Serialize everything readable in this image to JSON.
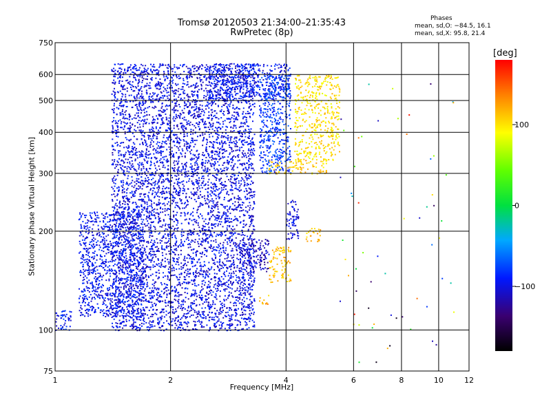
{
  "title": {
    "line1": "Tromsø 20120503 21:34:00–21:35:43",
    "line2": "RwPretec (8p)"
  },
  "stats": {
    "heading": "Phases",
    "o_mode": "mean, sd,O: −84.5, 16.1",
    "x_mode": "mean, sd,X:  95.8, 21.4"
  },
  "colorbar": {
    "label": "[deg]",
    "range": [
      -180,
      180
    ],
    "tick_labels": [
      "100",
      "0",
      "−100"
    ],
    "tick_values": [
      100,
      0,
      -100
    ]
  },
  "chart_data": {
    "type": "scatter",
    "xlabel": "Frequency [MHz]",
    "ylabel": "Stationary phase Virtual Height [km]",
    "xscale": "log",
    "yscale": "log",
    "xlim": [
      1,
      12
    ],
    "ylim": [
      75,
      750
    ],
    "x_ticks": [
      1,
      2,
      4,
      6,
      8,
      10,
      12
    ],
    "y_ticks": [
      75,
      100,
      200,
      300,
      400,
      500,
      600,
      750
    ],
    "grid": true,
    "color_encodes": "phase [deg]",
    "regions": [
      {
        "x": [
          1.4,
          3.3
        ],
        "y": [
          100,
          650
        ],
        "phase": -100
      },
      {
        "x": [
          1.15,
          1.7
        ],
        "y": [
          110,
          230
        ],
        "phase": -95
      },
      {
        "x": [
          1.0,
          1.1
        ],
        "y": [
          100,
          115
        ],
        "phase": -90
      },
      {
        "x": [
          2.5,
          4.1
        ],
        "y": [
          500,
          650
        ],
        "phase": -95
      },
      {
        "x": [
          3.4,
          4.1
        ],
        "y": [
          300,
          600
        ],
        "phase": -80
      },
      {
        "x": [
          3.0,
          3.6
        ],
        "y": [
          150,
          190
        ],
        "phase": -110
      },
      {
        "x": [
          4.0,
          4.3
        ],
        "y": [
          190,
          250
        ],
        "phase": -100
      },
      {
        "x": [
          3.6,
          5.1
        ],
        "y": [
          300,
          330
        ],
        "phase": 110
      },
      {
        "x": [
          4.2,
          5.5
        ],
        "y": [
          330,
          600
        ],
        "phase": 100
      },
      {
        "x": [
          3.6,
          4.1
        ],
        "y": [
          140,
          180
        ],
        "phase": 115
      },
      {
        "x": [
          4.5,
          4.9
        ],
        "y": [
          185,
          205
        ],
        "phase": 115
      },
      {
        "x": [
          3.4,
          3.6
        ],
        "y": [
          120,
          130
        ],
        "phase": 120
      },
      {
        "x": [
          5.5,
          11
        ],
        "y": [
          80,
          600
        ],
        "phase": 20
      }
    ]
  }
}
